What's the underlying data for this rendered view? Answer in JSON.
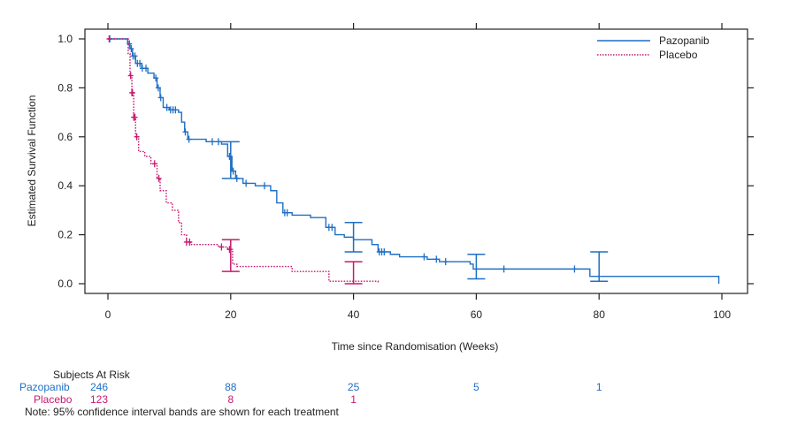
{
  "chart_data": {
    "type": "line",
    "subtype": "kaplan-meier",
    "title": "",
    "xlabel": "Time since Randomisation (Weeks)",
    "ylabel": "Estimated Survival Function",
    "xlim": [
      0,
      100
    ],
    "ylim": [
      0,
      1
    ],
    "xticks": [
      "0",
      "20",
      "40",
      "60",
      "80",
      "100"
    ],
    "xtick_values": [
      0,
      20,
      40,
      60,
      80,
      100
    ],
    "yticks": [
      "0.0",
      "0.2",
      "0.4",
      "0.6",
      "0.8",
      "1.0"
    ],
    "ytick_values": [
      0,
      0.2,
      0.4,
      0.6,
      0.8,
      1.0
    ],
    "grid": false,
    "legend_position": "top-right",
    "series": [
      {
        "name": "Pazopanib",
        "color": "#1f6fc5",
        "style": "solid",
        "steps": [
          [
            0,
            1.0
          ],
          [
            2.5,
            1.0
          ],
          [
            3.2,
            0.98
          ],
          [
            3.6,
            0.96
          ],
          [
            4.0,
            0.93
          ],
          [
            4.5,
            0.9
          ],
          [
            5.5,
            0.88
          ],
          [
            6.5,
            0.86
          ],
          [
            7.5,
            0.84
          ],
          [
            8.0,
            0.8
          ],
          [
            8.5,
            0.76
          ],
          [
            9.0,
            0.72
          ],
          [
            10,
            0.71
          ],
          [
            11.5,
            0.7
          ],
          [
            12,
            0.66
          ],
          [
            12.5,
            0.62
          ],
          [
            13,
            0.59
          ],
          [
            16,
            0.58
          ],
          [
            18.5,
            0.57
          ],
          [
            19.5,
            0.52
          ],
          [
            20.2,
            0.46
          ],
          [
            20.8,
            0.43
          ],
          [
            22,
            0.41
          ],
          [
            24,
            0.4
          ],
          [
            26.5,
            0.38
          ],
          [
            27.5,
            0.33
          ],
          [
            28.5,
            0.29
          ],
          [
            30,
            0.28
          ],
          [
            33,
            0.27
          ],
          [
            35.5,
            0.23
          ],
          [
            37,
            0.2
          ],
          [
            38.5,
            0.19
          ],
          [
            40,
            0.18
          ],
          [
            41.5,
            0.18
          ],
          [
            43,
            0.16
          ],
          [
            44,
            0.13
          ],
          [
            46,
            0.12
          ],
          [
            47.5,
            0.11
          ],
          [
            52,
            0.1
          ],
          [
            54,
            0.09
          ],
          [
            59,
            0.08
          ],
          [
            59.5,
            0.06
          ],
          [
            70,
            0.06
          ],
          [
            78,
            0.06
          ],
          [
            78.5,
            0.03
          ],
          [
            99.5,
            0.03
          ],
          [
            99.5,
            0.0
          ]
        ],
        "censor_times": [
          0.3,
          3.5,
          3.8,
          4.1,
          4.4,
          4.8,
          5.2,
          5.6,
          6.2,
          7.8,
          8.2,
          8.6,
          9.6,
          10.2,
          10.6,
          11.0,
          12.6,
          13.2,
          17.0,
          18.0,
          19.8,
          20.4,
          21.0,
          22.5,
          25.5,
          28.8,
          29.2,
          36.0,
          36.5,
          44.2,
          44.6,
          45.0,
          51.5,
          53.5,
          55.0,
          64.5,
          76.0
        ]
      },
      {
        "name": "Placebo",
        "color": "#c8186e",
        "style": "dotted",
        "steps": [
          [
            0,
            1.0
          ],
          [
            3.0,
            1.0
          ],
          [
            3.3,
            0.94
          ],
          [
            3.6,
            0.85
          ],
          [
            3.9,
            0.78
          ],
          [
            4.2,
            0.68
          ],
          [
            4.5,
            0.6
          ],
          [
            5.0,
            0.54
          ],
          [
            6.0,
            0.52
          ],
          [
            7.0,
            0.49
          ],
          [
            8.0,
            0.43
          ],
          [
            8.5,
            0.38
          ],
          [
            9.5,
            0.33
          ],
          [
            10.5,
            0.3
          ],
          [
            11.5,
            0.25
          ],
          [
            12.0,
            0.2
          ],
          [
            12.8,
            0.17
          ],
          [
            13.5,
            0.16
          ],
          [
            18,
            0.15
          ],
          [
            19.5,
            0.14
          ],
          [
            20.3,
            0.08
          ],
          [
            21,
            0.07
          ],
          [
            29,
            0.07
          ],
          [
            30,
            0.05
          ],
          [
            36,
            0.01
          ],
          [
            44,
            0.01
          ],
          [
            44,
            0.0
          ]
        ],
        "censor_times": [
          0.2,
          3.7,
          3.9,
          4.0,
          4.2,
          4.4,
          4.7,
          7.6,
          8.3,
          12.8,
          13.3,
          18.5,
          19.8
        ]
      }
    ],
    "confidence_intervals": [
      {
        "series": "Pazopanib",
        "x": 20,
        "lower": 0.43,
        "upper": 0.58
      },
      {
        "series": "Pazopanib",
        "x": 40,
        "lower": 0.13,
        "upper": 0.25
      },
      {
        "series": "Pazopanib",
        "x": 60,
        "lower": 0.02,
        "upper": 0.12
      },
      {
        "series": "Pazopanib",
        "x": 80,
        "lower": 0.01,
        "upper": 0.13
      },
      {
        "series": "Placebo",
        "x": 20,
        "lower": 0.05,
        "upper": 0.18
      },
      {
        "series": "Placebo",
        "x": 40,
        "lower": 0.0,
        "upper": 0.09
      }
    ],
    "risk_table": {
      "title": "Subjects At Risk",
      "times": [
        0,
        20,
        40,
        60,
        80
      ],
      "rows": [
        {
          "name": "Pazopanib",
          "color": "#1f6fc5",
          "values": [
            "246",
            "88",
            "25",
            "5",
            "1"
          ]
        },
        {
          "name": "Placebo",
          "color": "#c8186e",
          "values": [
            "123",
            "8",
            "1"
          ]
        }
      ]
    },
    "note": "Note: 95% confidence interval bands are shown for each treatment"
  }
}
